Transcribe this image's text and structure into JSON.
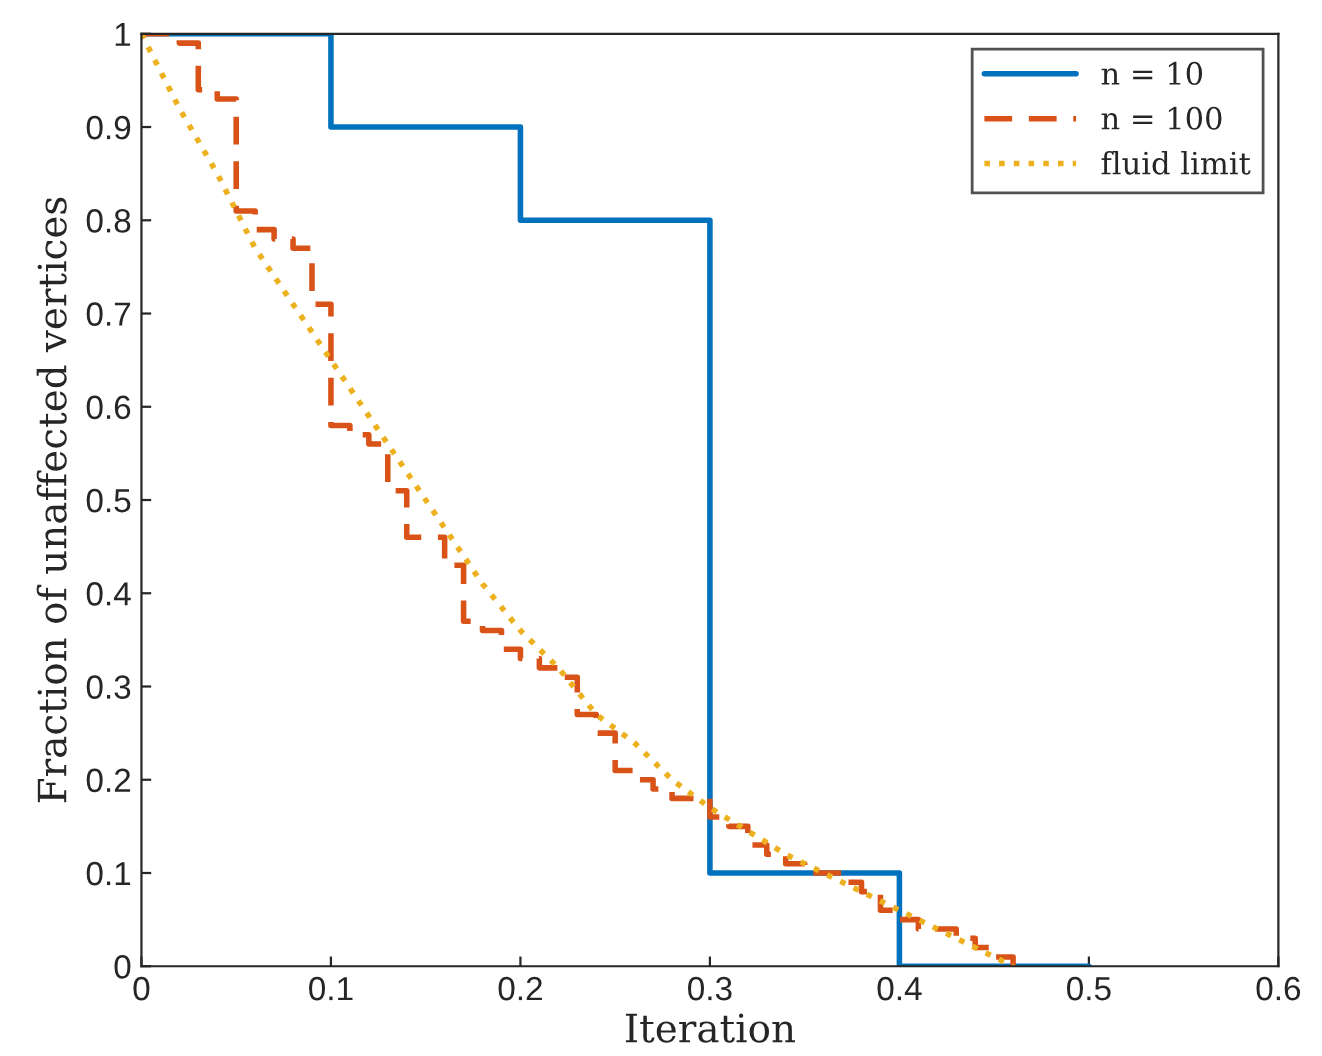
{
  "chart_data": {
    "type": "line",
    "xlabel": "Iteration",
    "ylabel": "Fraction of unaffected vertices",
    "xlim": [
      0,
      0.6
    ],
    "ylim": [
      0,
      1
    ],
    "xticks": [
      0,
      0.1,
      0.2,
      0.3,
      0.4,
      0.5,
      0.6
    ],
    "yticks": [
      0,
      0.1,
      0.2,
      0.3,
      0.4,
      0.5,
      0.6,
      0.7,
      0.8,
      0.9,
      1
    ],
    "grid": false,
    "legend": "top right",
    "series": [
      {
        "name": "n = 10",
        "type": "step",
        "color": "#0072bd",
        "line_style": "solid",
        "x": [
          0,
          0.1,
          0.2,
          0.3,
          0.4,
          0.5
        ],
        "values": [
          1,
          0.9,
          0.8,
          0.1,
          0,
          0
        ]
      },
      {
        "name": "n = 100",
        "type": "step",
        "color": "#d95319",
        "line_style": "dashed",
        "x": [
          0,
          0.02,
          0.03,
          0.04,
          0.05,
          0.06,
          0.07,
          0.08,
          0.09,
          0.1,
          0.11,
          0.12,
          0.13,
          0.14,
          0.15,
          0.16,
          0.17,
          0.18,
          0.19,
          0.2,
          0.21,
          0.22,
          0.23,
          0.24,
          0.25,
          0.26,
          0.27,
          0.28,
          0.29,
          0.3,
          0.31,
          0.32,
          0.33,
          0.34,
          0.35,
          0.36,
          0.37,
          0.38,
          0.39,
          0.4,
          0.41,
          0.42,
          0.43,
          0.44,
          0.45,
          0.46
        ],
        "values": [
          1,
          0.99,
          0.94,
          0.93,
          0.81,
          0.79,
          0.78,
          0.77,
          0.71,
          0.58,
          0.57,
          0.56,
          0.51,
          0.46,
          0.46,
          0.43,
          0.37,
          0.36,
          0.34,
          0.33,
          0.32,
          0.31,
          0.27,
          0.25,
          0.21,
          0.2,
          0.19,
          0.18,
          0.18,
          0.16,
          0.15,
          0.13,
          0.12,
          0.11,
          0.1,
          0.1,
          0.09,
          0.08,
          0.06,
          0.05,
          0.04,
          0.04,
          0.03,
          0.02,
          0.01,
          0
        ]
      },
      {
        "name": "fluid limit",
        "color": "#edb120",
        "line_style": "dotted",
        "x": [
          0,
          0.02,
          0.04,
          0.06,
          0.08,
          0.1,
          0.12,
          0.14,
          0.16,
          0.18,
          0.2,
          0.22,
          0.24,
          0.26,
          0.28,
          0.3,
          0.32,
          0.34,
          0.36,
          0.38,
          0.4,
          0.42,
          0.44,
          0.46
        ],
        "values": [
          1,
          0.92,
          0.85,
          0.77,
          0.71,
          0.65,
          0.59,
          0.53,
          0.47,
          0.41,
          0.36,
          0.32,
          0.27,
          0.24,
          0.2,
          0.17,
          0.145,
          0.12,
          0.1,
          0.08,
          0.06,
          0.04,
          0.02,
          0
        ]
      }
    ]
  }
}
